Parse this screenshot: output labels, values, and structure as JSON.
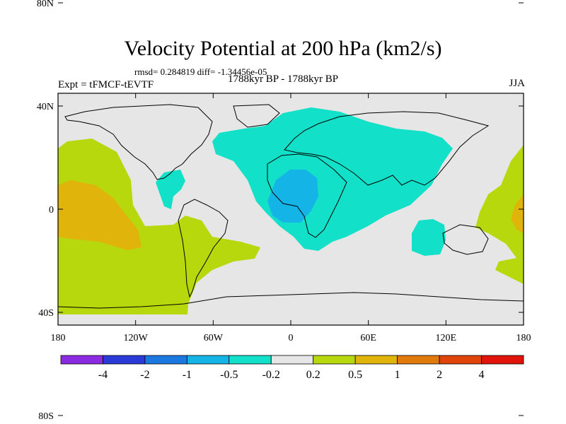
{
  "title": "Velocity Potential at 200 hPa (km2/s)",
  "stats": "rmsd= 0.284819 diff= -1.34456e-05",
  "experiment": "Expt = tFMCF-tEVTF",
  "period": "1788kyr BP - 1788kyr BP",
  "season": "JJA",
  "axes": {
    "lat_ticks": [
      {
        "lat": 80,
        "label": "80N"
      },
      {
        "lat": 40,
        "label": "40N"
      },
      {
        "lat": 0,
        "label": "0"
      },
      {
        "lat": -40,
        "label": "40S"
      },
      {
        "lat": -80,
        "label": "80S"
      }
    ],
    "lon_ticks": [
      {
        "lon": 0,
        "label": "180"
      },
      {
        "lon": 60,
        "label": "120W"
      },
      {
        "lon": 120,
        "label": "60W"
      },
      {
        "lon": 180,
        "label": "0"
      },
      {
        "lon": 240,
        "label": "60E"
      },
      {
        "lon": 300,
        "label": "120E"
      },
      {
        "lon": 360,
        "label": "180"
      }
    ]
  },
  "colorbar": {
    "colors": [
      "#8a2be2",
      "#2a3ad6",
      "#1a78e0",
      "#14b4e6",
      "#13e0c8",
      "#e6e6e6",
      "#b8d80e",
      "#e0b40a",
      "#e07a0a",
      "#e0440a",
      "#e0140a"
    ],
    "labels": [
      "-4",
      "-2",
      "-1",
      "-0.5",
      "-0.2",
      "0.2",
      "0.5",
      "1",
      "2",
      "4"
    ]
  },
  "colors": {
    "background": "#e6e6e6",
    "cyan": "#13e0c8",
    "blue": "#14b4e6",
    "green": "#b8d80e",
    "orange": "#e0b40a"
  }
}
